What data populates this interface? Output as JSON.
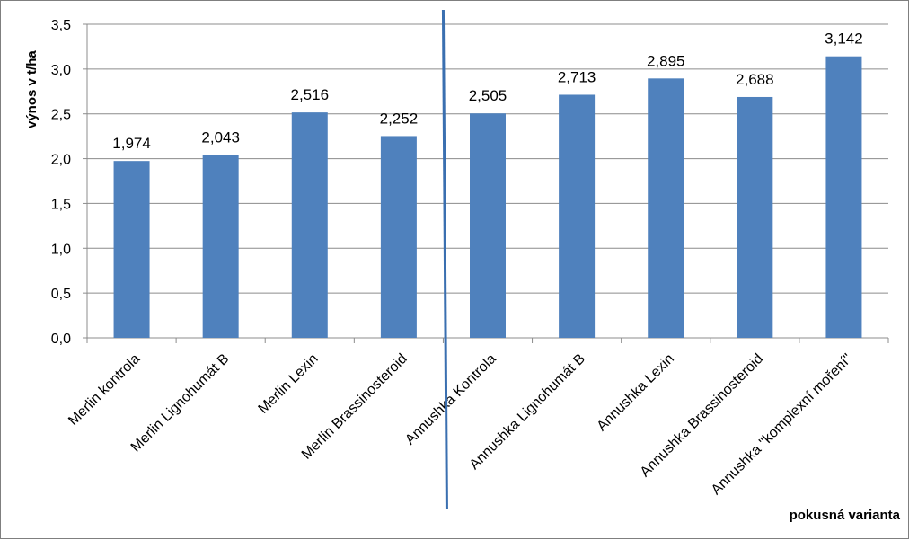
{
  "chart_data": {
    "type": "bar",
    "title": "",
    "xlabel": "pokusná varianta",
    "ylabel": "výnos v t/ha",
    "categories": [
      "Merlin kontrola",
      "Merlin Lignohumát B",
      "Merlin Lexin",
      "Merlin   Brassinosteroid",
      "Annushka Kontrola",
      "Annushka Lignohumát B",
      "Annushka Lexin",
      "Annushka Brassinosteroid",
      "Annushka \"komplexní moření\""
    ],
    "values": [
      1.974,
      2.043,
      2.516,
      2.252,
      2.505,
      2.713,
      2.895,
      2.688,
      3.142
    ],
    "data_labels": [
      "1,974",
      "2,043",
      "2,516",
      "2,252",
      "2,505",
      "2,713",
      "2,895",
      "2,688",
      "3,142"
    ],
    "y_ticks": [
      "0,0",
      "0,5",
      "1,0",
      "1,5",
      "2,0",
      "2,5",
      "3,0",
      "3,5"
    ],
    "ylim": [
      0,
      3.5
    ],
    "grid": true,
    "legend": "none",
    "bar_color": "#4f81bd",
    "divider_color": "#3a6fb0",
    "divider_after_category": 4
  }
}
